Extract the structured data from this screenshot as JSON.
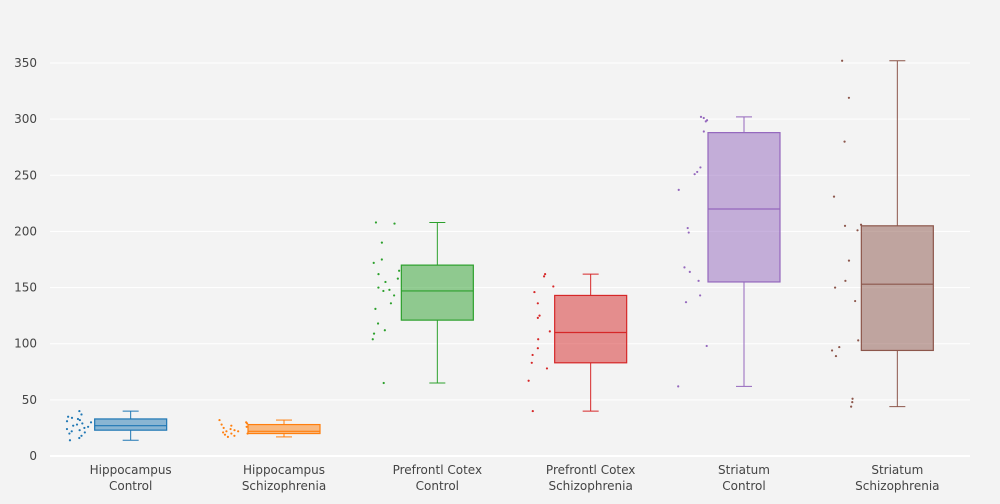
{
  "chart_data": {
    "type": "box",
    "title": "",
    "xlabel": "",
    "ylabel": "",
    "ylim": [
      0,
      370
    ],
    "y_ticks": [
      0,
      50,
      100,
      150,
      200,
      250,
      300,
      350
    ],
    "grid": true,
    "legend": "none",
    "categories": [
      [
        "Hippocampus",
        "Control"
      ],
      [
        "Hippocampus",
        "Schizophrenia"
      ],
      [
        "Prefrontl Cotex",
        "Control"
      ],
      [
        "Prefrontl Cotex",
        "Schizophrenia"
      ],
      [
        "Striatum",
        "Control"
      ],
      [
        "Striatum",
        "Schizophrenia"
      ]
    ],
    "series": [
      {
        "color": "#1f77b4",
        "min": 14,
        "q1": 23,
        "median": 27,
        "q3": 33,
        "max": 40,
        "points": [
          40,
          37,
          35,
          34,
          33,
          32,
          31,
          30,
          29,
          28,
          27,
          26,
          25,
          24,
          23,
          22,
          21,
          20,
          18,
          16,
          14
        ]
      },
      {
        "color": "#ff7f0e",
        "min": 17,
        "q1": 20,
        "median": 22,
        "q3": 28,
        "max": 32,
        "points": [
          32,
          30,
          29,
          28,
          27,
          26,
          25,
          24,
          23,
          22,
          22,
          21,
          20,
          20,
          19,
          18,
          17
        ]
      },
      {
        "color": "#2ca02c",
        "min": 65,
        "q1": 121,
        "median": 147,
        "q3": 170,
        "max": 208,
        "points": [
          208,
          207,
          190,
          175,
          172,
          165,
          162,
          158,
          155,
          150,
          148,
          147,
          143,
          136,
          131,
          118,
          112,
          109,
          104,
          65
        ]
      },
      {
        "color": "#d62728",
        "min": 40,
        "q1": 83,
        "median": 110,
        "q3": 143,
        "max": 162,
        "points": [
          162,
          160,
          151,
          146,
          136,
          125,
          123,
          111,
          104,
          96,
          90,
          83,
          78,
          67,
          40
        ]
      },
      {
        "color": "#9467bd",
        "min": 62,
        "q1": 155,
        "median": 220,
        "q3": 288,
        "max": 302,
        "points": [
          302,
          301,
          299,
          298,
          289,
          257,
          253,
          251,
          237,
          203,
          199,
          168,
          164,
          156,
          143,
          137,
          98,
          62
        ]
      },
      {
        "color": "#8c564b",
        "min": 44,
        "q1": 94,
        "median": 153,
        "q3": 205,
        "max": 352,
        "points": [
          352,
          319,
          280,
          231,
          206,
          205,
          201,
          174,
          156,
          150,
          138,
          103,
          97,
          94,
          89,
          51,
          48,
          44
        ]
      }
    ]
  }
}
